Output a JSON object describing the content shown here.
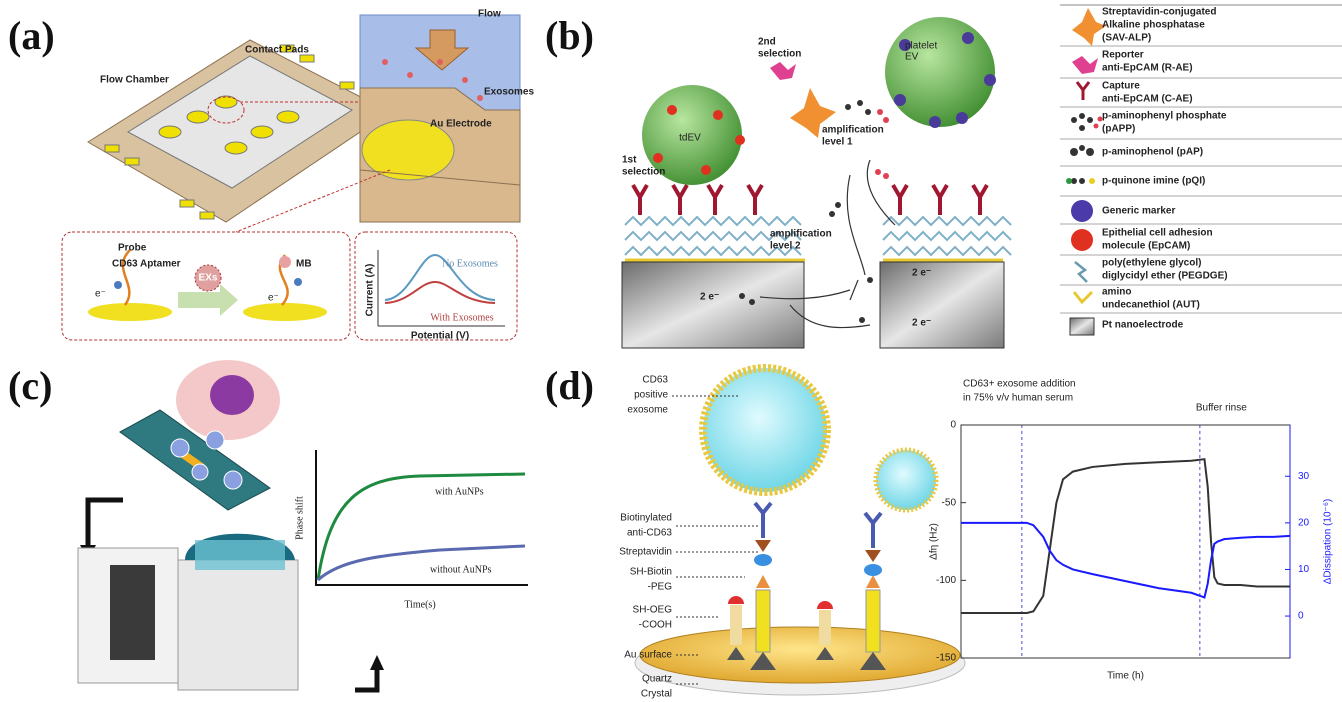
{
  "panel_a": {
    "label": "(a)",
    "contact_pads": "Contact Pads",
    "flow_chamber": "Flow Chamber",
    "flow": "Flow",
    "exosomes": "Exosomes",
    "au_electrode": "Au Electrode",
    "probe": "Probe",
    "aptamer": "CD63 Aptamer",
    "exs": "EXs",
    "mb": "MB",
    "electron_left": "e⁻",
    "electron_right": "e⁻",
    "no_exosomes": "No Exosomes",
    "with_exosomes": "With Exosomes",
    "y_axis": "Current (A)",
    "x_axis": "Potential (V)"
  },
  "panel_b": {
    "label": "(b)",
    "tdev": "tdEV",
    "platelet_ev": [
      "platelet",
      "EV"
    ],
    "first_selection": [
      "1st",
      "selection"
    ],
    "second_selection": [
      "2nd",
      "selection"
    ],
    "amp1": [
      "amplification",
      "level 1"
    ],
    "amp2": [
      "amplification",
      "level 2"
    ],
    "electrons": [
      "2 e⁻",
      "2 e⁻",
      "2 e⁻"
    ],
    "legend": [
      [
        "Streptavidin-conjugated",
        "Alkaline phosphatase",
        "(SAV-ALP)"
      ],
      [
        "Reporter",
        "anti-EpCAM (R-AE)"
      ],
      [
        "Capture",
        "anti-EpCAM (C-AE)"
      ],
      [
        "p-aminophenyl phosphate",
        "(pAPP)"
      ],
      [
        "p-aminophenol (pAP)"
      ],
      [
        "p-quinone imine (pQI)"
      ],
      [
        "Generic marker"
      ],
      [
        "Epithelial cell adhesion",
        "molecule (EpCAM)"
      ],
      [
        "poly(ethylene glycol)",
        "diglycidyl ether (PEGDGE)"
      ],
      [
        "amino",
        "undecanethiol (AUT)"
      ],
      [
        "Pt nanoelectrode"
      ]
    ]
  },
  "panel_c": {
    "label": "(c)",
    "y_axis": "Phase shift",
    "x_axis": "Time(s)",
    "with": "with AuNPs",
    "without": "without AuNPs"
  },
  "panel_d": {
    "label": "(d)",
    "exosome": [
      "CD63",
      "positive",
      "exosome"
    ],
    "biotin": [
      "Biotinylated",
      "anti-CD63"
    ],
    "streptavidin": "Streptavidin",
    "peg": [
      "SH-Biotin",
      "-PEG"
    ],
    "oeg": [
      "SH-OEG",
      "-COOH"
    ],
    "au_surface": "Au surface",
    "quartz": [
      "Quartz",
      "Crystal"
    ]
  },
  "chart_data": {
    "type": "line",
    "x_label": "Time (h)",
    "y_label": "Δfη (Hz)",
    "y2_label": "ΔDissipation (10⁻⁶)",
    "x": [
      0,
      5,
      10,
      15,
      20,
      22,
      25,
      27,
      29,
      31,
      34,
      40,
      50,
      60,
      70,
      74,
      75,
      76,
      77,
      78,
      80,
      85,
      90,
      95,
      100
    ],
    "xlim": [
      0,
      100
    ],
    "ylim": [
      -150,
      0
    ],
    "yticks": [
      0,
      -50,
      -100,
      -150
    ],
    "y2lim": [
      -9,
      41
    ],
    "y2ticks": [
      0,
      10,
      20,
      30
    ],
    "annotations": [
      {
        "text": [
          "CD63+ exosome addition",
          "in 75% v/v human serum"
        ],
        "x": 18.5
      },
      {
        "text": [
          "Buffer rinse"
        ],
        "x": 72.6
      }
    ],
    "series": [
      {
        "color": "#333333",
        "values": [
          -121,
          -121,
          -121,
          -121,
          -121,
          -120,
          -110,
          -80,
          -50,
          -35,
          -30,
          -27,
          -25,
          -24,
          -23,
          -22,
          -40,
          -75,
          -98,
          -102,
          -103,
          -103,
          -104,
          -104,
          -104
        ]
      },
      {
        "color": "#1a1aff",
        "axis": "y2",
        "values": [
          20,
          20,
          20,
          20,
          20,
          19.5,
          17,
          14,
          12,
          11,
          10,
          9,
          7.5,
          6,
          5,
          4,
          7,
          12,
          15.5,
          16,
          16.5,
          16.8,
          17,
          17,
          17.2
        ]
      }
    ]
  }
}
